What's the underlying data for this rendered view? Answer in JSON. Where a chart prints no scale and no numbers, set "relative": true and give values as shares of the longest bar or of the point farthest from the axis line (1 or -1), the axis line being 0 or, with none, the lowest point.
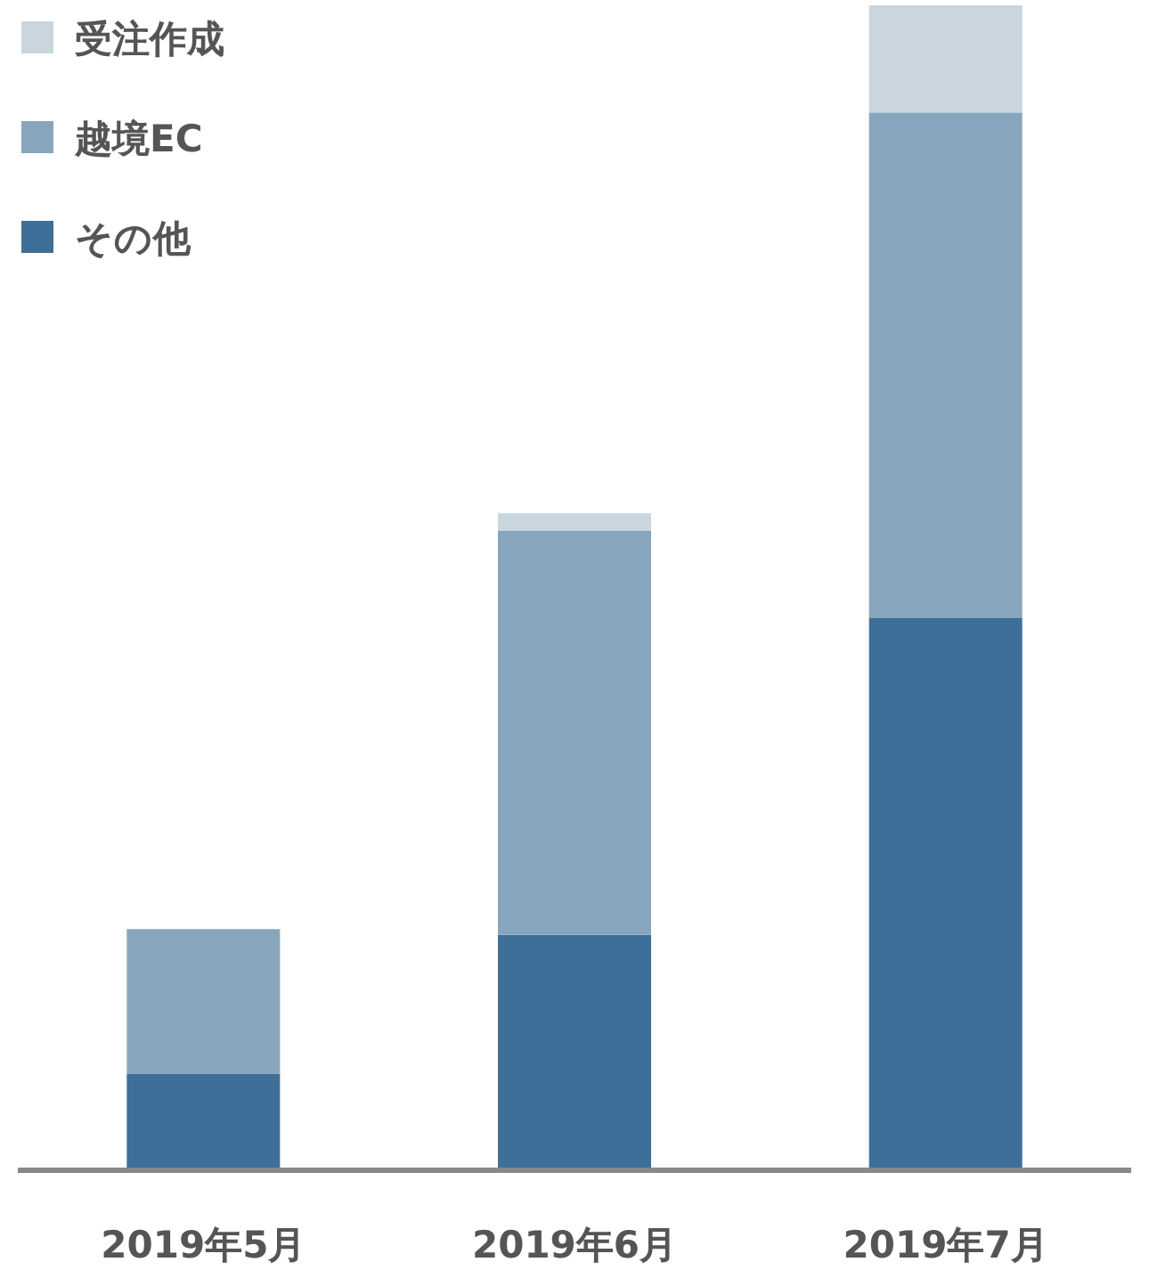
{
  "chart_data": {
    "type": "bar",
    "stacked": true,
    "relative": true,
    "legend": "top left",
    "categories": [
      "2019年5月",
      "2019年6月",
      "2019年7月"
    ],
    "series": [
      {
        "name": "その他",
        "color": "#3e6f98",
        "values": [
          0.083,
          0.202,
          0.474
        ]
      },
      {
        "name": "越境EC",
        "color": "#87a6bd",
        "values": [
          0.124,
          0.347,
          0.434
        ]
      },
      {
        "name": "受注作成",
        "color": "#cad6dd",
        "values": [
          0,
          0.015,
          0.092
        ]
      }
    ]
  }
}
